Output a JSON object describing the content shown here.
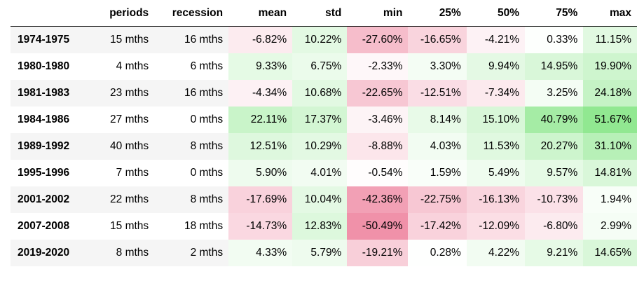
{
  "headers": [
    "",
    "periods",
    "recession",
    "mean",
    "std",
    "min",
    "25%",
    "50%",
    "75%",
    "max"
  ],
  "rows": [
    {
      "index": "1974-1975",
      "periods": "15 mths",
      "recession": "16 mths",
      "mean": "-6.82%",
      "std": "10.22%",
      "min": "-27.60%",
      "p25": "-16.65%",
      "p50": "-4.21%",
      "p75": "0.33%",
      "max": "11.15%"
    },
    {
      "index": "1980-1980",
      "periods": "4 mths",
      "recession": "6 mths",
      "mean": "9.33%",
      "std": "6.75%",
      "min": "-2.33%",
      "p25": "3.30%",
      "p50": "9.94%",
      "p75": "14.95%",
      "max": "19.90%"
    },
    {
      "index": "1981-1983",
      "periods": "23 mths",
      "recession": "16 mths",
      "mean": "-4.34%",
      "std": "10.68%",
      "min": "-22.65%",
      "p25": "-12.51%",
      "p50": "-7.34%",
      "p75": "3.25%",
      "max": "24.18%"
    },
    {
      "index": "1984-1986",
      "periods": "27 mths",
      "recession": "0 mths",
      "mean": "22.11%",
      "std": "17.37%",
      "min": "-3.46%",
      "p25": "8.14%",
      "p50": "15.10%",
      "p75": "40.79%",
      "max": "51.67%"
    },
    {
      "index": "1989-1992",
      "periods": "40 mths",
      "recession": "8 mths",
      "mean": "12.51%",
      "std": "10.29%",
      "min": "-8.88%",
      "p25": "4.03%",
      "p50": "11.53%",
      "p75": "20.27%",
      "max": "31.10%"
    },
    {
      "index": "1995-1996",
      "periods": "7 mths",
      "recession": "0 mths",
      "mean": "5.90%",
      "std": "4.01%",
      "min": "-0.54%",
      "p25": "1.59%",
      "p50": "5.49%",
      "p75": "9.57%",
      "max": "14.81%"
    },
    {
      "index": "2001-2002",
      "periods": "22 mths",
      "recession": "8 mths",
      "mean": "-17.69%",
      "std": "10.04%",
      "min": "-42.36%",
      "p25": "-22.75%",
      "p50": "-16.13%",
      "p75": "-10.73%",
      "max": "1.94%"
    },
    {
      "index": "2007-2008",
      "periods": "15 mths",
      "recession": "18 mths",
      "mean": "-14.73%",
      "std": "12.83%",
      "min": "-50.49%",
      "p25": "-17.42%",
      "p50": "-12.09%",
      "p75": "-6.80%",
      "max": "2.99%"
    },
    {
      "index": "2019-2020",
      "periods": "8 mths",
      "recession": "2 mths",
      "mean": "4.33%",
      "std": "5.79%",
      "min": "-19.21%",
      "p25": "0.28%",
      "p50": "4.22%",
      "p75": "9.21%",
      "max": "14.65%"
    }
  ],
  "colors": {
    "positive": "#90e890",
    "negative": "#f090a8",
    "stripe": "#f5f5f5"
  }
}
